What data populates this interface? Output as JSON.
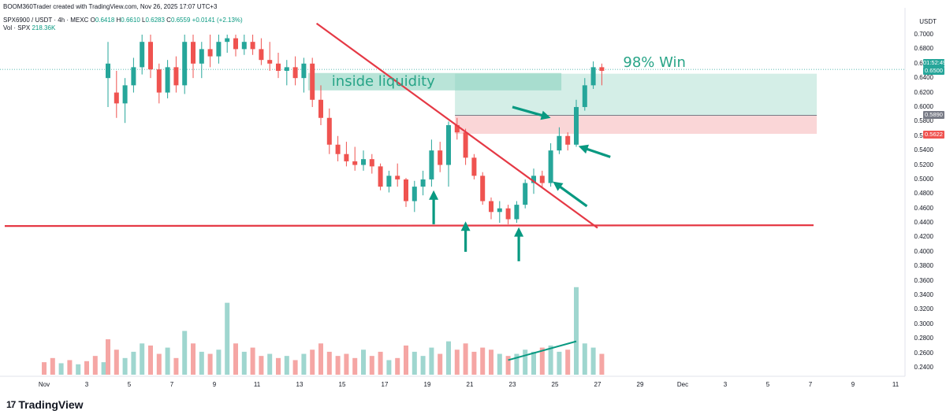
{
  "header": {
    "credit": "BOOM360Trader created with TradingView.com, Nov 26, 2025 17:07 UTC+3",
    "symbol_line": "SPX6900 / USDT · 4h · MEXC",
    "o_label": "O",
    "o_val": "0.6418",
    "h_label": "H",
    "h_val": "0.6610",
    "l_label": "L",
    "l_val": "0.6283",
    "c_label": "C",
    "c_val": "0.6559",
    "change": "+0.0141 (+2.13%)",
    "vol_line": "Vol · SPX",
    "vol_val": "218.36K"
  },
  "currency": "USDT",
  "price_tags": {
    "countdown": "01:52:49",
    "current": "0.6500",
    "entry": "0.5890",
    "stop": "0.5622"
  },
  "brand": {
    "name": "TradingView"
  },
  "colors": {
    "up": "#26a69a",
    "down": "#ef5350",
    "red_line": "#e53945",
    "arrow": "#089981",
    "teal_text": "#27a487"
  },
  "chart_data": {
    "type": "candlestick",
    "interval": "4h",
    "y_ticks": [
      "0.7000",
      "0.6800",
      "0.6600",
      "0.6400",
      "0.6200",
      "0.6000",
      "0.5800",
      "0.5600",
      "0.5400",
      "0.5200",
      "0.5000",
      "0.4800",
      "0.4600",
      "0.4400",
      "0.4200",
      "0.4000",
      "0.3800",
      "0.3600",
      "0.3400",
      "0.3200",
      "0.3000",
      "0.2800",
      "0.2600",
      "0.2400"
    ],
    "ylim": [
      0.2315,
      0.7155
    ],
    "x_ticks": [
      {
        "label": "Nov",
        "d": 1
      },
      {
        "label": "3",
        "d": 3
      },
      {
        "label": "5",
        "d": 5
      },
      {
        "label": "7",
        "d": 7
      },
      {
        "label": "9",
        "d": 9
      },
      {
        "label": "11",
        "d": 11
      },
      {
        "label": "13",
        "d": 13
      },
      {
        "label": "15",
        "d": 15
      },
      {
        "label": "17",
        "d": 17
      },
      {
        "label": "19",
        "d": 19
      },
      {
        "label": "21",
        "d": 21
      },
      {
        "label": "23",
        "d": 23
      },
      {
        "label": "25",
        "d": 25
      },
      {
        "label": "27",
        "d": 27
      },
      {
        "label": "29",
        "d": 29
      },
      {
        "label": "Dec",
        "d": 31
      },
      {
        "label": "3",
        "d": 33
      },
      {
        "label": "5",
        "d": 35
      },
      {
        "label": "7",
        "d": 37
      },
      {
        "label": "9",
        "d": 39
      },
      {
        "label": "11",
        "d": 41
      }
    ],
    "candles": [
      {
        "d": 4.0,
        "o": 0.64,
        "h": 0.69,
        "l": 0.6,
        "c": 0.66
      },
      {
        "d": 4.4,
        "o": 0.62,
        "h": 0.65,
        "l": 0.585,
        "c": 0.605
      },
      {
        "d": 4.8,
        "o": 0.605,
        "h": 0.64,
        "l": 0.578,
        "c": 0.63
      },
      {
        "d": 5.2,
        "o": 0.63,
        "h": 0.668,
        "l": 0.62,
        "c": 0.655
      },
      {
        "d": 5.6,
        "o": 0.655,
        "h": 0.7,
        "l": 0.645,
        "c": 0.69
      },
      {
        "d": 6.0,
        "o": 0.69,
        "h": 0.7,
        "l": 0.64,
        "c": 0.652
      },
      {
        "d": 6.4,
        "o": 0.652,
        "h": 0.66,
        "l": 0.605,
        "c": 0.62
      },
      {
        "d": 6.8,
        "o": 0.62,
        "h": 0.665,
        "l": 0.612,
        "c": 0.655
      },
      {
        "d": 7.2,
        "o": 0.655,
        "h": 0.67,
        "l": 0.62,
        "c": 0.63
      },
      {
        "d": 7.6,
        "o": 0.63,
        "h": 0.7,
        "l": 0.618,
        "c": 0.69
      },
      {
        "d": 8.0,
        "o": 0.69,
        "h": 0.7,
        "l": 0.64,
        "c": 0.66
      },
      {
        "d": 8.4,
        "o": 0.66,
        "h": 0.69,
        "l": 0.64,
        "c": 0.68
      },
      {
        "d": 8.8,
        "o": 0.68,
        "h": 0.7,
        "l": 0.655,
        "c": 0.67
      },
      {
        "d": 9.2,
        "o": 0.67,
        "h": 0.7,
        "l": 0.66,
        "c": 0.69
      },
      {
        "d": 9.6,
        "o": 0.69,
        "h": 0.7,
        "l": 0.675,
        "c": 0.695
      },
      {
        "d": 10.0,
        "o": 0.695,
        "h": 0.7,
        "l": 0.67,
        "c": 0.68
      },
      {
        "d": 10.4,
        "o": 0.68,
        "h": 0.7,
        "l": 0.672,
        "c": 0.69
      },
      {
        "d": 10.8,
        "o": 0.69,
        "h": 0.7,
        "l": 0.672,
        "c": 0.68
      },
      {
        "d": 11.2,
        "o": 0.68,
        "h": 0.695,
        "l": 0.658,
        "c": 0.665
      },
      {
        "d": 11.6,
        "o": 0.665,
        "h": 0.69,
        "l": 0.65,
        "c": 0.66
      },
      {
        "d": 12.0,
        "o": 0.66,
        "h": 0.675,
        "l": 0.64,
        "c": 0.65
      },
      {
        "d": 12.4,
        "o": 0.65,
        "h": 0.665,
        "l": 0.63,
        "c": 0.655
      },
      {
        "d": 12.8,
        "o": 0.655,
        "h": 0.67,
        "l": 0.63,
        "c": 0.64
      },
      {
        "d": 13.2,
        "o": 0.64,
        "h": 0.668,
        "l": 0.62,
        "c": 0.66
      },
      {
        "d": 13.6,
        "o": 0.66,
        "h": 0.668,
        "l": 0.6,
        "c": 0.61
      },
      {
        "d": 14.0,
        "o": 0.61,
        "h": 0.63,
        "l": 0.575,
        "c": 0.585
      },
      {
        "d": 14.4,
        "o": 0.585,
        "h": 0.598,
        "l": 0.535,
        "c": 0.548
      },
      {
        "d": 14.8,
        "o": 0.548,
        "h": 0.56,
        "l": 0.525,
        "c": 0.535
      },
      {
        "d": 15.2,
        "o": 0.535,
        "h": 0.552,
        "l": 0.518,
        "c": 0.525
      },
      {
        "d": 15.6,
        "o": 0.525,
        "h": 0.545,
        "l": 0.512,
        "c": 0.52
      },
      {
        "d": 16.0,
        "o": 0.52,
        "h": 0.54,
        "l": 0.512,
        "c": 0.528
      },
      {
        "d": 16.4,
        "o": 0.528,
        "h": 0.535,
        "l": 0.508,
        "c": 0.518
      },
      {
        "d": 16.8,
        "o": 0.518,
        "h": 0.522,
        "l": 0.485,
        "c": 0.49
      },
      {
        "d": 17.2,
        "o": 0.49,
        "h": 0.512,
        "l": 0.482,
        "c": 0.505
      },
      {
        "d": 17.6,
        "o": 0.505,
        "h": 0.522,
        "l": 0.49,
        "c": 0.5
      },
      {
        "d": 18.0,
        "o": 0.5,
        "h": 0.502,
        "l": 0.462,
        "c": 0.47
      },
      {
        "d": 18.4,
        "o": 0.47,
        "h": 0.498,
        "l": 0.455,
        "c": 0.49
      },
      {
        "d": 18.8,
        "o": 0.49,
        "h": 0.512,
        "l": 0.478,
        "c": 0.5
      },
      {
        "d": 19.2,
        "o": 0.5,
        "h": 0.555,
        "l": 0.49,
        "c": 0.54
      },
      {
        "d": 19.6,
        "o": 0.54,
        "h": 0.552,
        "l": 0.51,
        "c": 0.52
      },
      {
        "d": 20.0,
        "o": 0.52,
        "h": 0.58,
        "l": 0.49,
        "c": 0.575
      },
      {
        "d": 20.4,
        "o": 0.575,
        "h": 0.585,
        "l": 0.555,
        "c": 0.565
      },
      {
        "d": 20.8,
        "o": 0.565,
        "h": 0.57,
        "l": 0.52,
        "c": 0.53
      },
      {
        "d": 21.2,
        "o": 0.53,
        "h": 0.535,
        "l": 0.5,
        "c": 0.505
      },
      {
        "d": 21.6,
        "o": 0.505,
        "h": 0.51,
        "l": 0.465,
        "c": 0.47
      },
      {
        "d": 22.0,
        "o": 0.47,
        "h": 0.475,
        "l": 0.445,
        "c": 0.455
      },
      {
        "d": 22.4,
        "o": 0.455,
        "h": 0.47,
        "l": 0.44,
        "c": 0.46
      },
      {
        "d": 22.8,
        "o": 0.46,
        "h": 0.465,
        "l": 0.438,
        "c": 0.445
      },
      {
        "d": 23.2,
        "o": 0.445,
        "h": 0.47,
        "l": 0.44,
        "c": 0.465
      },
      {
        "d": 23.6,
        "o": 0.465,
        "h": 0.5,
        "l": 0.46,
        "c": 0.495
      },
      {
        "d": 24.0,
        "o": 0.495,
        "h": 0.515,
        "l": 0.48,
        "c": 0.505
      },
      {
        "d": 24.4,
        "o": 0.505,
        "h": 0.512,
        "l": 0.488,
        "c": 0.495
      },
      {
        "d": 24.8,
        "o": 0.495,
        "h": 0.55,
        "l": 0.49,
        "c": 0.54
      },
      {
        "d": 25.2,
        "o": 0.54,
        "h": 0.572,
        "l": 0.535,
        "c": 0.56
      },
      {
        "d": 25.6,
        "o": 0.56,
        "h": 0.565,
        "l": 0.54,
        "c": 0.548
      },
      {
        "d": 26.0,
        "o": 0.548,
        "h": 0.61,
        "l": 0.545,
        "c": 0.6
      },
      {
        "d": 26.4,
        "o": 0.6,
        "h": 0.64,
        "l": 0.595,
        "c": 0.63
      },
      {
        "d": 26.8,
        "o": 0.63,
        "h": 0.663,
        "l": 0.625,
        "c": 0.655
      },
      {
        "d": 27.2,
        "o": 0.655,
        "h": 0.66,
        "l": 0.63,
        "c": 0.65
      }
    ],
    "volume_ylim": [
      0,
      540
    ],
    "volume": [
      {
        "d": 1.0,
        "v": 60,
        "up": false
      },
      {
        "d": 1.4,
        "v": 80,
        "up": false
      },
      {
        "d": 1.8,
        "v": 55,
        "up": true
      },
      {
        "d": 2.2,
        "v": 70,
        "up": false
      },
      {
        "d": 2.6,
        "v": 50,
        "up": true
      },
      {
        "d": 3.0,
        "v": 65,
        "up": false
      },
      {
        "d": 3.4,
        "v": 90,
        "up": false
      },
      {
        "d": 3.8,
        "v": 60,
        "up": true
      },
      {
        "d": 4.0,
        "v": 170,
        "up": false
      },
      {
        "d": 4.4,
        "v": 120,
        "up": false
      },
      {
        "d": 4.8,
        "v": 80,
        "up": true
      },
      {
        "d": 5.2,
        "v": 110,
        "up": true
      },
      {
        "d": 5.6,
        "v": 150,
        "up": true
      },
      {
        "d": 6.0,
        "v": 140,
        "up": false
      },
      {
        "d": 6.4,
        "v": 100,
        "up": false
      },
      {
        "d": 6.8,
        "v": 130,
        "up": true
      },
      {
        "d": 7.2,
        "v": 80,
        "up": false
      },
      {
        "d": 7.6,
        "v": 210,
        "up": true
      },
      {
        "d": 8.0,
        "v": 150,
        "up": false
      },
      {
        "d": 8.4,
        "v": 110,
        "up": true
      },
      {
        "d": 8.8,
        "v": 100,
        "up": false
      },
      {
        "d": 9.2,
        "v": 120,
        "up": true
      },
      {
        "d": 9.6,
        "v": 345,
        "up": true
      },
      {
        "d": 10.0,
        "v": 150,
        "up": false
      },
      {
        "d": 10.4,
        "v": 110,
        "up": true
      },
      {
        "d": 10.8,
        "v": 130,
        "up": false
      },
      {
        "d": 11.2,
        "v": 90,
        "up": false
      },
      {
        "d": 11.6,
        "v": 100,
        "up": true
      },
      {
        "d": 12.0,
        "v": 80,
        "up": false
      },
      {
        "d": 12.4,
        "v": 90,
        "up": true
      },
      {
        "d": 12.8,
        "v": 70,
        "up": false
      },
      {
        "d": 13.2,
        "v": 100,
        "up": true
      },
      {
        "d": 13.6,
        "v": 120,
        "up": false
      },
      {
        "d": 14.0,
        "v": 150,
        "up": false
      },
      {
        "d": 14.4,
        "v": 110,
        "up": false
      },
      {
        "d": 14.8,
        "v": 90,
        "up": false
      },
      {
        "d": 15.2,
        "v": 100,
        "up": false
      },
      {
        "d": 15.6,
        "v": 80,
        "up": false
      },
      {
        "d": 16.0,
        "v": 120,
        "up": true
      },
      {
        "d": 16.4,
        "v": 90,
        "up": false
      },
      {
        "d": 16.8,
        "v": 110,
        "up": false
      },
      {
        "d": 17.2,
        "v": 70,
        "up": true
      },
      {
        "d": 17.6,
        "v": 80,
        "up": false
      },
      {
        "d": 18.0,
        "v": 140,
        "up": false
      },
      {
        "d": 18.4,
        "v": 110,
        "up": true
      },
      {
        "d": 18.8,
        "v": 90,
        "up": true
      },
      {
        "d": 19.2,
        "v": 130,
        "up": true
      },
      {
        "d": 19.6,
        "v": 100,
        "up": false
      },
      {
        "d": 20.0,
        "v": 160,
        "up": true
      },
      {
        "d": 20.4,
        "v": 120,
        "up": false
      },
      {
        "d": 20.8,
        "v": 150,
        "up": false
      },
      {
        "d": 21.2,
        "v": 110,
        "up": false
      },
      {
        "d": 21.6,
        "v": 130,
        "up": false
      },
      {
        "d": 22.0,
        "v": 120,
        "up": false
      },
      {
        "d": 22.4,
        "v": 100,
        "up": true
      },
      {
        "d": 22.8,
        "v": 90,
        "up": false
      },
      {
        "d": 23.2,
        "v": 100,
        "up": true
      },
      {
        "d": 23.6,
        "v": 120,
        "up": true
      },
      {
        "d": 24.0,
        "v": 110,
        "up": true
      },
      {
        "d": 24.4,
        "v": 130,
        "up": false
      },
      {
        "d": 24.8,
        "v": 140,
        "up": true
      },
      {
        "d": 25.2,
        "v": 110,
        "up": true
      },
      {
        "d": 25.6,
        "v": 120,
        "up": false
      },
      {
        "d": 26.0,
        "v": 420,
        "up": true
      },
      {
        "d": 26.4,
        "v": 150,
        "up": true
      },
      {
        "d": 26.8,
        "v": 130,
        "up": true
      },
      {
        "d": 27.2,
        "v": 100,
        "up": false
      }
    ],
    "annotations": {
      "liquidity_label": "inside liquidity",
      "win_label": "98% Win",
      "support_price": 0.4356,
      "trendline": [
        {
          "d": 13.8,
          "p": 0.7155
        },
        {
          "d": 27.0,
          "p": 0.433
        }
      ],
      "liquidity_zone": {
        "d0": 13.4,
        "d1": 25.3,
        "p_top": 0.647,
        "p_bot": 0.623
      },
      "target_zone": {
        "d0": 20.3,
        "d1": 37.3,
        "p_top": 0.646,
        "p_bot": 0.5885
      },
      "stop_zone": {
        "d0": 20.3,
        "d1": 37.3,
        "p_top": 0.5885,
        "p_bot": 0.563
      },
      "arrows": [
        {
          "from": [
            19.3,
            0.438
          ],
          "to": [
            19.3,
            0.485
          ]
        },
        {
          "from": [
            20.8,
            0.4
          ],
          "to": [
            20.8,
            0.442
          ]
        },
        {
          "from": [
            23.3,
            0.387
          ],
          "to": [
            23.3,
            0.434
          ]
        },
        {
          "from": [
            23.0,
            0.6
          ],
          "to": [
            24.8,
            0.585
          ]
        },
        {
          "from": [
            27.6,
            0.531
          ],
          "to": [
            26.1,
            0.546
          ]
        },
        {
          "from": [
            26.5,
            0.463
          ],
          "to": [
            24.9,
            0.497
          ]
        }
      ],
      "volume_trend": [
        {
          "d": 22.8,
          "v": 70
        },
        {
          "d": 26.0,
          "v": 160
        }
      ]
    }
  }
}
